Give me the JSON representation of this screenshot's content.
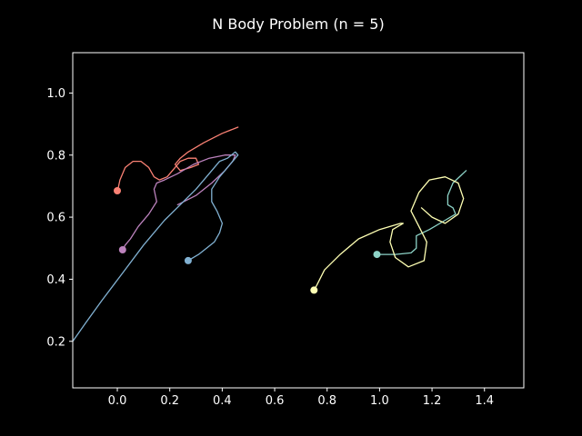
{
  "chart_data": {
    "type": "line",
    "title": "N Body Problem (n = 5)",
    "xlabel": "",
    "ylabel": "",
    "xlim": [
      -0.17,
      1.55
    ],
    "ylim": [
      0.05,
      1.13
    ],
    "xticks": [
      0.0,
      0.2,
      0.4,
      0.6,
      0.8,
      1.0,
      1.2,
      1.4
    ],
    "xtick_labels": [
      "0.0",
      "0.2",
      "0.4",
      "0.6",
      "0.8",
      "1.0",
      "1.2",
      "1.4"
    ],
    "yticks": [
      0.2,
      0.4,
      0.6,
      0.8,
      1.0
    ],
    "ytick_labels": [
      "0.2",
      "0.4",
      "0.6",
      "0.8",
      "1.0"
    ],
    "grid": false,
    "background": "#000000",
    "foreground": "#ffffff",
    "series": [
      {
        "color": "#fa8174",
        "x": [
          0.46,
          0.4,
          0.33,
          0.27,
          0.24,
          0.22,
          0.24,
          0.28,
          0.31,
          0.3,
          0.27,
          0.24,
          0.22,
          0.19,
          0.16,
          0.14,
          0.12,
          0.09,
          0.06,
          0.03,
          0.01,
          0.0
        ],
        "y": [
          0.89,
          0.87,
          0.84,
          0.81,
          0.79,
          0.77,
          0.75,
          0.76,
          0.77,
          0.79,
          0.79,
          0.78,
          0.76,
          0.73,
          0.72,
          0.73,
          0.76,
          0.78,
          0.78,
          0.76,
          0.72,
          0.68
        ],
        "end": [
          0.0,
          0.685
        ]
      },
      {
        "color": "#bc82bd",
        "x": [
          0.23,
          0.3,
          0.36,
          0.41,
          0.44,
          0.45,
          0.41,
          0.35,
          0.29,
          0.23,
          0.18,
          0.15,
          0.14,
          0.15,
          0.12,
          0.08,
          0.05,
          0.03,
          0.02
        ],
        "y": [
          0.64,
          0.67,
          0.71,
          0.75,
          0.78,
          0.8,
          0.8,
          0.79,
          0.77,
          0.74,
          0.72,
          0.71,
          0.69,
          0.65,
          0.61,
          0.57,
          0.53,
          0.51,
          0.495
        ],
        "end": [
          0.02,
          0.495
        ]
      },
      {
        "color": "#81b1d2",
        "x": [
          -0.17,
          -0.12,
          -0.06,
          0.02,
          0.1,
          0.18,
          0.24,
          0.3,
          0.35,
          0.39,
          0.42,
          0.45,
          0.46,
          0.43,
          0.39,
          0.36,
          0.36,
          0.38,
          0.4,
          0.39,
          0.37,
          0.34,
          0.31,
          0.28,
          0.27
        ],
        "y": [
          0.2,
          0.26,
          0.33,
          0.42,
          0.51,
          0.59,
          0.64,
          0.69,
          0.74,
          0.78,
          0.79,
          0.81,
          0.8,
          0.77,
          0.73,
          0.69,
          0.65,
          0.62,
          0.58,
          0.55,
          0.52,
          0.5,
          0.48,
          0.465,
          0.46
        ],
        "end": [
          0.27,
          0.46
        ]
      },
      {
        "color": "#8dd3c7",
        "x": [
          1.33,
          1.28,
          1.26,
          1.26,
          1.28,
          1.29,
          1.25,
          1.19,
          1.14,
          1.14,
          1.12,
          1.06,
          1.0,
          0.99
        ],
        "y": [
          0.75,
          0.71,
          0.67,
          0.64,
          0.63,
          0.61,
          0.59,
          0.56,
          0.54,
          0.5,
          0.485,
          0.48,
          0.48,
          0.48
        ],
        "end": [
          0.99,
          0.48
        ]
      },
      {
        "color": "#feffb3",
        "x": [
          1.16,
          1.2,
          1.25,
          1.3,
          1.32,
          1.3,
          1.25,
          1.19,
          1.15,
          1.12,
          1.15,
          1.18,
          1.17,
          1.11,
          1.06,
          1.04,
          1.05,
          1.09,
          1.08,
          1.0,
          0.92,
          0.85,
          0.79,
          0.76,
          0.75
        ],
        "y": [
          0.63,
          0.6,
          0.58,
          0.61,
          0.66,
          0.71,
          0.73,
          0.72,
          0.68,
          0.62,
          0.57,
          0.52,
          0.46,
          0.44,
          0.47,
          0.52,
          0.56,
          0.58,
          0.58,
          0.56,
          0.53,
          0.48,
          0.43,
          0.38,
          0.365
        ],
        "end": [
          0.75,
          0.365
        ]
      }
    ]
  }
}
